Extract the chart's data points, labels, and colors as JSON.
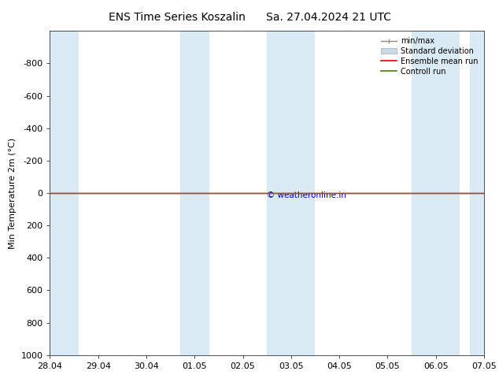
{
  "title_left": "ENS Time Series Koszalin",
  "title_right": "Sa. 27.04.2024 21 UTC",
  "ylabel": "Min Temperature 2m (°C)",
  "ylim_bottom": 1000,
  "ylim_top": -1000,
  "yticks": [
    -800,
    -600,
    -400,
    -200,
    0,
    200,
    400,
    600,
    800,
    1000
  ],
  "xlim_start": 0,
  "xlim_end": 9,
  "xtick_labels": [
    "28.04",
    "29.04",
    "30.04",
    "01.05",
    "02.05",
    "03.05",
    "04.05",
    "05.05",
    "06.05",
    "07.05"
  ],
  "xtick_positions": [
    0,
    1,
    2,
    3,
    4,
    5,
    6,
    7,
    8,
    9
  ],
  "shaded_bands": [
    [
      0.0,
      0.6
    ],
    [
      2.7,
      3.3
    ],
    [
      4.5,
      5.5
    ],
    [
      7.5,
      8.5
    ],
    [
      8.7,
      9.0
    ]
  ],
  "band_color": "#daeaf5",
  "green_line_y": 0,
  "red_line_y": 0,
  "green_line_color": "#4a7c00",
  "red_line_color": "#dd0000",
  "copyright_text": "© weatheronline.in",
  "copyright_color": "#0000bb",
  "legend_labels": [
    "min/max",
    "Standard deviation",
    "Ensemble mean run",
    "Controll run"
  ],
  "minmax_color": "#888888",
  "std_color": "#c5dce8",
  "std_edge_color": "#aaaaaa",
  "ens_color": "#dd0000",
  "ctrl_color": "#4a7c00",
  "background_color": "#ffffff",
  "title_fontsize": 10,
  "axis_fontsize": 8,
  "tick_fontsize": 8
}
